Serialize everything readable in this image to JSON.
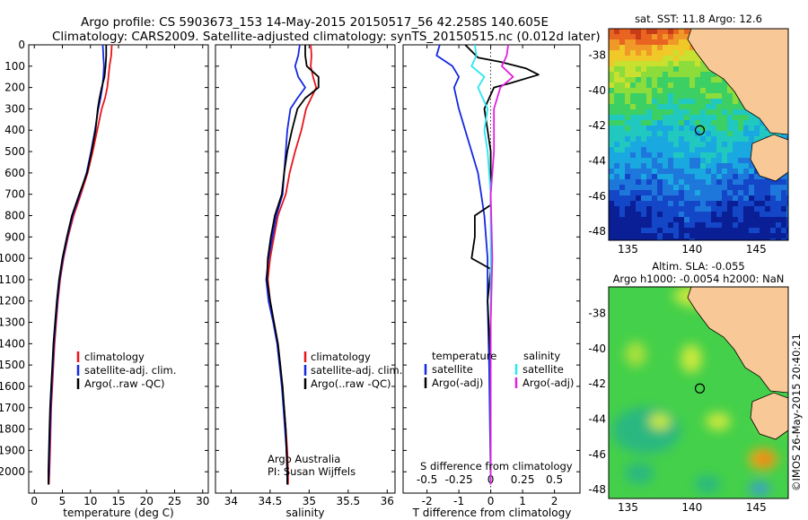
{
  "header": {
    "line1": "Argo profile: CS 5903673_153 14-May-2015 20150517_56 42.258S 140.605E",
    "line2": "Climatology: CARS2009. Satellite-adjusted climatology: synTS_20150515.nc (0.012d later)"
  },
  "credit": "Argo Australia",
  "pi": "PI: Susan Wijffels",
  "watermark": "©IMOS 26-May-2015 20:40:21",
  "colors": {
    "climatology": "#e8141c",
    "satellite": "#1428e0",
    "argo": "#000000",
    "sal_satellite": "#28e8f0",
    "sal_argo": "#e020e0"
  },
  "chart_data": [
    {
      "type": "line",
      "xlabel": "temperature (deg C)",
      "ylabel": "",
      "xlim": [
        -1,
        31
      ],
      "ylim": [
        2100,
        0
      ],
      "xticks": [
        0,
        5,
        10,
        15,
        20,
        25,
        30
      ],
      "yticks": [
        0,
        100,
        200,
        300,
        400,
        500,
        600,
        700,
        800,
        900,
        1000,
        1100,
        1200,
        1300,
        1400,
        1500,
        1600,
        1700,
        1800,
        1900,
        2000
      ],
      "legend": [
        "climatology",
        "satellite-adj. clim.",
        "Argo(..raw -QC)"
      ],
      "series": [
        {
          "name": "climatology",
          "color": "#e8141c",
          "points": [
            [
              13.8,
              0
            ],
            [
              13.7,
              50
            ],
            [
              13.4,
              100
            ],
            [
              13.2,
              150
            ],
            [
              13.0,
              200
            ],
            [
              12.6,
              250
            ],
            [
              12.0,
              300
            ],
            [
              11.2,
              400
            ],
            [
              10.4,
              500
            ],
            [
              9.5,
              600
            ],
            [
              8.3,
              700
            ],
            [
              7.0,
              800
            ],
            [
              6.0,
              900
            ],
            [
              5.2,
              1000
            ],
            [
              4.6,
              1100
            ],
            [
              4.2,
              1200
            ],
            [
              3.9,
              1300
            ],
            [
              3.6,
              1400
            ],
            [
              3.4,
              1500
            ],
            [
              3.2,
              1600
            ],
            [
              3.0,
              1700
            ],
            [
              2.9,
              1800
            ],
            [
              2.8,
              1900
            ],
            [
              2.7,
              2000
            ],
            [
              2.6,
              2060
            ]
          ]
        },
        {
          "name": "satellite-adj. clim.",
          "color": "#1428e0",
          "points": [
            [
              12.2,
              0
            ],
            [
              12.3,
              50
            ],
            [
              12.4,
              100
            ],
            [
              12.3,
              150
            ],
            [
              12.1,
              200
            ],
            [
              11.8,
              250
            ],
            [
              11.4,
              300
            ],
            [
              10.8,
              400
            ],
            [
              10.1,
              500
            ],
            [
              9.3,
              600
            ],
            [
              8.1,
              700
            ],
            [
              6.8,
              800
            ],
            [
              5.9,
              900
            ],
            [
              5.1,
              1000
            ],
            [
              4.5,
              1100
            ],
            [
              4.1,
              1200
            ],
            [
              3.8,
              1300
            ],
            [
              3.5,
              1400
            ],
            [
              3.3,
              1500
            ],
            [
              3.1,
              1600
            ],
            [
              2.9,
              1700
            ],
            [
              2.8,
              1800
            ],
            [
              2.7,
              1900
            ],
            [
              2.6,
              2000
            ],
            [
              2.5,
              2060
            ]
          ]
        },
        {
          "name": "Argo(..raw -QC)",
          "color": "#000000",
          "points": [
            [
              12.8,
              0
            ],
            [
              12.8,
              50
            ],
            [
              12.7,
              100
            ],
            [
              12.5,
              150
            ],
            [
              12.0,
              200
            ],
            [
              11.6,
              250
            ],
            [
              11.3,
              300
            ],
            [
              10.9,
              400
            ],
            [
              10.2,
              500
            ],
            [
              9.4,
              600
            ],
            [
              8.0,
              700
            ],
            [
              6.7,
              800
            ],
            [
              5.8,
              900
            ],
            [
              5.0,
              1000
            ],
            [
              4.4,
              1100
            ],
            [
              4.0,
              1200
            ],
            [
              3.7,
              1300
            ],
            [
              3.4,
              1400
            ],
            [
              3.2,
              1500
            ],
            [
              3.0,
              1600
            ],
            [
              2.8,
              1700
            ],
            [
              2.7,
              1800
            ],
            [
              2.6,
              1900
            ],
            [
              2.5,
              2000
            ],
            [
              2.5,
              2060
            ]
          ]
        }
      ]
    },
    {
      "type": "line",
      "xlabel": "salinity",
      "xlim": [
        33.8,
        36.1
      ],
      "ylim": [
        2100,
        0
      ],
      "xticks": [
        34,
        34.5,
        35,
        35.5,
        36
      ],
      "legend": [
        "climatology",
        "satellite-adj. clim.",
        "Argo(..raw -QC)"
      ],
      "series": [
        {
          "name": "climatology",
          "color": "#e8141c",
          "points": [
            [
              35.02,
              0
            ],
            [
              35.03,
              50
            ],
            [
              35.02,
              100
            ],
            [
              35.05,
              150
            ],
            [
              35.09,
              200
            ],
            [
              34.96,
              300
            ],
            [
              34.9,
              400
            ],
            [
              34.82,
              500
            ],
            [
              34.75,
              600
            ],
            [
              34.7,
              700
            ],
            [
              34.6,
              800
            ],
            [
              34.55,
              900
            ],
            [
              34.5,
              1000
            ],
            [
              34.47,
              1100
            ],
            [
              34.5,
              1200
            ],
            [
              34.55,
              1300
            ],
            [
              34.6,
              1400
            ],
            [
              34.63,
              1500
            ],
            [
              34.65,
              1600
            ],
            [
              34.68,
              1700
            ],
            [
              34.7,
              1800
            ],
            [
              34.72,
              1900
            ],
            [
              34.73,
              2000
            ],
            [
              34.73,
              2060
            ]
          ]
        },
        {
          "name": "satellite-adj. clim.",
          "color": "#1428e0",
          "points": [
            [
              34.88,
              0
            ],
            [
              34.86,
              50
            ],
            [
              34.82,
              100
            ],
            [
              34.86,
              150
            ],
            [
              34.95,
              200
            ],
            [
              34.85,
              250
            ],
            [
              34.76,
              300
            ],
            [
              34.72,
              400
            ],
            [
              34.7,
              500
            ],
            [
              34.68,
              600
            ],
            [
              34.66,
              700
            ],
            [
              34.58,
              800
            ],
            [
              34.53,
              900
            ],
            [
              34.48,
              1000
            ],
            [
              34.45,
              1100
            ],
            [
              34.48,
              1200
            ],
            [
              34.54,
              1300
            ],
            [
              34.59,
              1400
            ],
            [
              34.62,
              1500
            ],
            [
              34.65,
              1600
            ],
            [
              34.67,
              1700
            ],
            [
              34.69,
              1800
            ],
            [
              34.71,
              1900
            ],
            [
              34.72,
              2000
            ],
            [
              34.72,
              2060
            ]
          ]
        },
        {
          "name": "Argo(..raw -QC)",
          "color": "#000000",
          "points": [
            [
              34.95,
              0
            ],
            [
              34.95,
              50
            ],
            [
              34.97,
              100
            ],
            [
              35.12,
              150
            ],
            [
              35.12,
              200
            ],
            [
              34.95,
              250
            ],
            [
              34.85,
              300
            ],
            [
              34.78,
              400
            ],
            [
              34.72,
              500
            ],
            [
              34.68,
              600
            ],
            [
              34.65,
              700
            ],
            [
              34.56,
              800
            ],
            [
              34.51,
              900
            ],
            [
              34.47,
              1000
            ],
            [
              34.46,
              1100
            ],
            [
              34.5,
              1200
            ],
            [
              34.55,
              1300
            ],
            [
              34.6,
              1400
            ],
            [
              34.63,
              1500
            ],
            [
              34.66,
              1600
            ],
            [
              34.68,
              1700
            ],
            [
              34.7,
              1800
            ],
            [
              34.71,
              1900
            ],
            [
              34.72,
              2000
            ],
            [
              34.72,
              2060
            ]
          ]
        }
      ]
    },
    {
      "type": "line",
      "xlabel": "T difference from climatology",
      "xlabel_top": "S difference from climatology",
      "xlim": [
        -2.75,
        2.8
      ],
      "ylim": [
        2100,
        0
      ],
      "xticks": [
        -2,
        -1,
        0,
        1,
        2
      ],
      "xticks_top": [
        "-0.5",
        "-0.25",
        "0",
        "0.25",
        "0.5"
      ],
      "xticks_top_pos": [
        -2,
        -1,
        0,
        1,
        2
      ],
      "legend_t_title": "temperature",
      "legend_s_title": "salinity",
      "legend": [
        "satellite",
        "Argo(-adj)",
        "satellite",
        "Argo(-adj)"
      ],
      "series": [
        {
          "name": "satellite",
          "color": "#1428e0",
          "points": [
            [
              -1.6,
              0
            ],
            [
              -1.7,
              50
            ],
            [
              -1.2,
              100
            ],
            [
              -1.0,
              150
            ],
            [
              -1.15,
              200
            ],
            [
              -1.0,
              300
            ],
            [
              -0.8,
              400
            ],
            [
              -0.6,
              500
            ],
            [
              -0.4,
              600
            ],
            [
              -0.3,
              700
            ],
            [
              -0.2,
              800
            ],
            [
              -0.15,
              900
            ],
            [
              -0.1,
              1000
            ],
            [
              -0.1,
              1200
            ],
            [
              -0.05,
              1500
            ],
            [
              0,
              2060
            ]
          ]
        },
        {
          "name": "Argo(-adj)",
          "color": "#000000",
          "points": [
            [
              -0.8,
              0
            ],
            [
              -0.4,
              60
            ],
            [
              0.3,
              80
            ],
            [
              1.1,
              110
            ],
            [
              1.5,
              140
            ],
            [
              0.6,
              180
            ],
            [
              0.1,
              200
            ],
            [
              -0.2,
              300
            ],
            [
              -0.1,
              400
            ],
            [
              0,
              500
            ],
            [
              0,
              750
            ],
            [
              -0.5,
              800
            ],
            [
              -0.5,
              900
            ],
            [
              -0.6,
              1000
            ],
            [
              0,
              1050
            ],
            [
              -0.1,
              1200
            ],
            [
              0,
              1500
            ],
            [
              0,
              2060
            ]
          ]
        },
        {
          "name": "satellite",
          "color": "#28e8f0",
          "points": [
            [
              -0.5,
              0
            ],
            [
              -0.45,
              50
            ],
            [
              -0.6,
              100
            ],
            [
              -0.2,
              150
            ],
            [
              -0.4,
              200
            ],
            [
              -0.1,
              300
            ],
            [
              -0.2,
              400
            ],
            [
              -0.1,
              500
            ],
            [
              0,
              700
            ],
            [
              0,
              2060
            ]
          ]
        },
        {
          "name": "Argo(-adj)",
          "color": "#e020e0",
          "points": [
            [
              0.55,
              0
            ],
            [
              0.5,
              50
            ],
            [
              0.35,
              100
            ],
            [
              0.7,
              150
            ],
            [
              0.3,
              200
            ],
            [
              0.1,
              300
            ],
            [
              0.1,
              500
            ],
            [
              0,
              700
            ],
            [
              0.05,
              1000
            ],
            [
              0,
              1300
            ],
            [
              0,
              2060
            ]
          ]
        }
      ]
    },
    {
      "type": "heatmap",
      "title": "sat. SST: 11.8 Argo: 12.6",
      "xlim": [
        133.5,
        147.5
      ],
      "ylim": [
        -48.5,
        -36.5
      ],
      "xticks": [
        135,
        140,
        145
      ],
      "yticks": [
        -38,
        -40,
        -42,
        -44,
        -46,
        -48
      ],
      "argo_position": [
        140.605,
        -42.258
      ]
    },
    {
      "type": "heatmap",
      "title": "Altim. SLA: -0.055",
      "subtitle": "Argo h1000: -0.0054 h2000: NaN",
      "xlim": [
        133.5,
        147.5
      ],
      "ylim": [
        -48.5,
        -36.5
      ],
      "xticks": [
        135,
        140,
        145
      ],
      "yticks": [
        -38,
        -40,
        -42,
        -44,
        -46,
        -48
      ],
      "argo_position": [
        140.605,
        -42.258
      ]
    }
  ]
}
